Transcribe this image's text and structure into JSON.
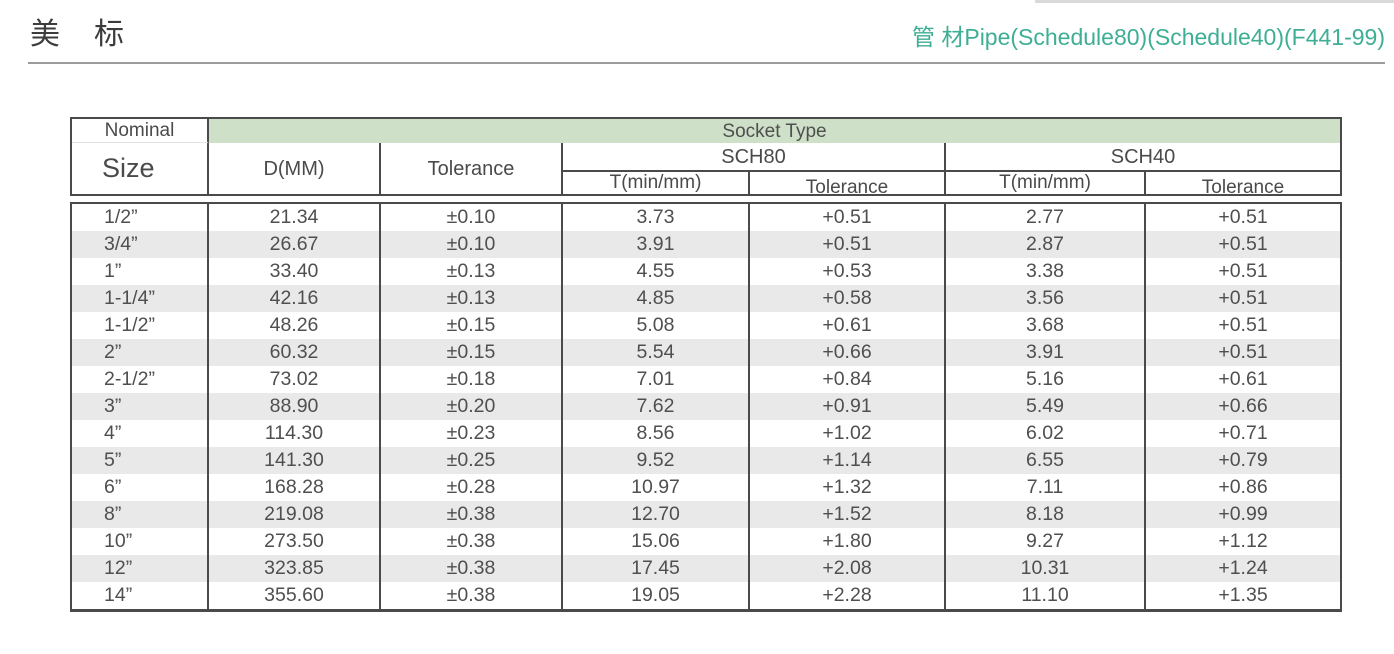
{
  "page": {
    "title": "美　标",
    "subtitle": "管 材Pipe(Schedule80)(Schedule40)(F441-99)",
    "accent_color": "#3eae94",
    "band_color": "#cee0c8",
    "stripe_color": "#e9e9e9"
  },
  "table": {
    "header": {
      "nominal": "Nominal",
      "size": "Size",
      "socket_type": "Socket Type",
      "d_mm": "D(MM)",
      "tolerance": "Tolerance",
      "sch80": "SCH80",
      "sch40": "SCH40",
      "t_min_80": "T(min/mm)",
      "tolerance_80": "Tolerance",
      "t_min_40": "T(min/mm)",
      "tolerance_40": "Tolerance"
    },
    "rows": [
      [
        "1/2”",
        "21.34",
        "±0.10",
        "3.73",
        "+0.51",
        "2.77",
        "+0.51"
      ],
      [
        "3/4”",
        "26.67",
        "±0.10",
        "3.91",
        "+0.51",
        "2.87",
        "+0.51"
      ],
      [
        "1”",
        "33.40",
        "±0.13",
        "4.55",
        "+0.53",
        "3.38",
        "+0.51"
      ],
      [
        "1-1/4”",
        "42.16",
        "±0.13",
        "4.85",
        "+0.58",
        "3.56",
        "+0.51"
      ],
      [
        "1-1/2”",
        "48.26",
        "±0.15",
        "5.08",
        "+0.61",
        "3.68",
        "+0.51"
      ],
      [
        "2”",
        "60.32",
        "±0.15",
        "5.54",
        "+0.66",
        "3.91",
        "+0.51"
      ],
      [
        "2-1/2”",
        "73.02",
        "±0.18",
        "7.01",
        "+0.84",
        "5.16",
        "+0.61"
      ],
      [
        "3”",
        "88.90",
        "±0.20",
        "7.62",
        "+0.91",
        "5.49",
        "+0.66"
      ],
      [
        "4”",
        "114.30",
        "±0.23",
        "8.56",
        "+1.02",
        "6.02",
        "+0.71"
      ],
      [
        "5”",
        "141.30",
        "±0.25",
        "9.52",
        "+1.14",
        "6.55",
        "+0.79"
      ],
      [
        "6”",
        "168.28",
        "±0.28",
        "10.97",
        "+1.32",
        "7.11",
        "+0.86"
      ],
      [
        "8”",
        "219.08",
        "±0.38",
        "12.70",
        "+1.52",
        "8.18",
        "+0.99"
      ],
      [
        "10”",
        "273.50",
        "±0.38",
        "15.06",
        "+1.80",
        "9.27",
        "+1.12"
      ],
      [
        "12”",
        "323.85",
        "±0.38",
        "17.45",
        "+2.08",
        "10.31",
        "+1.24"
      ],
      [
        "14”",
        "355.60",
        "±0.38",
        "19.05",
        "+2.28",
        "11.10",
        "+1.35"
      ]
    ]
  }
}
